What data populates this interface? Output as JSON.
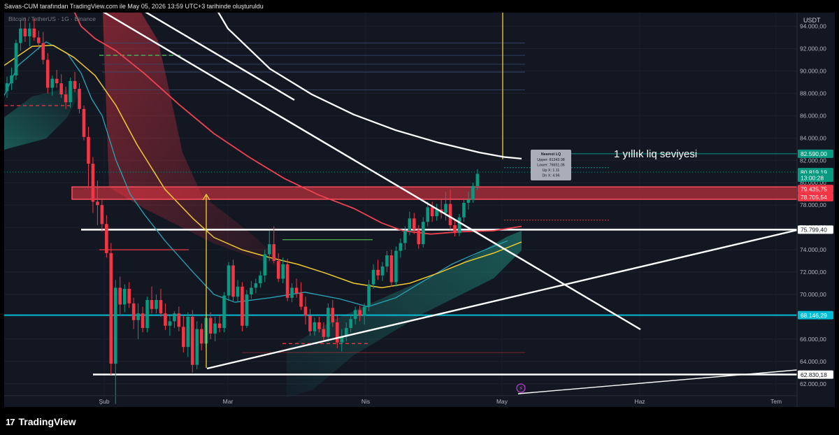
{
  "header": {
    "caption": "Savas-CUM tarafından TradingView.com ile May 05, 2026 13:59 UTC+3 tarihinde oluşturuldu"
  },
  "footer": {
    "logo_mark": "17",
    "brand": "TradingView"
  },
  "chart_data": {
    "type": "candlestick",
    "symbol_label": "Bitcoin / TetherUS · 1G · Binance",
    "currency": "USDT",
    "x_ticks": [
      "Şub",
      "Mar",
      "Nis",
      "May",
      "Haz",
      "Tem"
    ],
    "y_ticks": [
      "62.000,00",
      "64.000,00",
      "66.000,00",
      "68.000,00",
      "70.000,00",
      "72.000,00",
      "74.000,00",
      "76.000,00",
      "78.000,00",
      "80.000,00",
      "82.000,00",
      "84.000,00",
      "86.000,00",
      "88.000,00",
      "90.000,00",
      "92.000,00",
      "94.000,00"
    ],
    "ylim": [
      61000,
      95000
    ],
    "price_labels": [
      {
        "text": "82.590,00",
        "value": 82590,
        "color": "#089981"
      },
      {
        "text": "80.819,19",
        "value": 80950,
        "color": "#089981"
      },
      {
        "text": "13:00:28",
        "value": 80450,
        "color": "#089981"
      },
      {
        "text": "79.435,75",
        "value": 79436,
        "color": "#f23645"
      },
      {
        "text": "78.705,54",
        "value": 78706,
        "color": "#f23645"
      },
      {
        "text": "75.799,40",
        "value": 75799,
        "color": "#ffffff"
      },
      {
        "text": "68.146,29",
        "value": 68146,
        "color": "#00bcd4"
      },
      {
        "text": "62.830,18",
        "value": 62830,
        "color": "#ffffff"
      }
    ],
    "annotation": "1 yıllık liq seviyesi",
    "tooltip": {
      "title": "Nearest LQ",
      "lines": [
        "Upper: 81343.98",
        "Lower: 76651.06",
        "Up X: 1.11",
        "Dn X: 4.96"
      ]
    },
    "support_levels": [
      75799.4,
      68146.29,
      62830.18
    ],
    "liquidity_zone": [
      78705.54,
      79435.75
    ],
    "candles": [
      {
        "o": 88200,
        "h": 89500,
        "l": 87600,
        "c": 88900
      },
      {
        "o": 88900,
        "h": 90300,
        "l": 88300,
        "c": 89600
      },
      {
        "o": 89600,
        "h": 92800,
        "l": 89200,
        "c": 92500
      },
      {
        "o": 92500,
        "h": 94600,
        "l": 91800,
        "c": 93800
      },
      {
        "o": 93800,
        "h": 94800,
        "l": 92600,
        "c": 93100
      },
      {
        "o": 93100,
        "h": 94300,
        "l": 92200,
        "c": 93800
      },
      {
        "o": 93800,
        "h": 94700,
        "l": 92700,
        "c": 93000
      },
      {
        "o": 93000,
        "h": 93600,
        "l": 91900,
        "c": 92500
      },
      {
        "o": 92500,
        "h": 93500,
        "l": 90600,
        "c": 91000
      },
      {
        "o": 91000,
        "h": 91600,
        "l": 88000,
        "c": 88500
      },
      {
        "o": 88500,
        "h": 89600,
        "l": 87800,
        "c": 89300
      },
      {
        "o": 89300,
        "h": 90100,
        "l": 88500,
        "c": 88900
      },
      {
        "o": 88900,
        "h": 89700,
        "l": 87600,
        "c": 87900
      },
      {
        "o": 87900,
        "h": 88600,
        "l": 86600,
        "c": 87200
      },
      {
        "o": 87200,
        "h": 89400,
        "l": 86700,
        "c": 89100
      },
      {
        "o": 89100,
        "h": 89900,
        "l": 88100,
        "c": 88400
      },
      {
        "o": 88400,
        "h": 88900,
        "l": 86200,
        "c": 86600
      },
      {
        "o": 86600,
        "h": 86900,
        "l": 83800,
        "c": 84100
      },
      {
        "o": 84100,
        "h": 85000,
        "l": 79500,
        "c": 81700
      },
      {
        "o": 81700,
        "h": 82300,
        "l": 77300,
        "c": 78300
      },
      {
        "o": 78300,
        "h": 80200,
        "l": 76200,
        "c": 78000
      },
      {
        "o": 78000,
        "h": 78600,
        "l": 75600,
        "c": 76300
      },
      {
        "o": 76300,
        "h": 77100,
        "l": 73300,
        "c": 73700
      },
      {
        "o": 73700,
        "h": 74600,
        "l": 62800,
        "c": 63800
      },
      {
        "o": 63800,
        "h": 71300,
        "l": 60200,
        "c": 70600
      },
      {
        "o": 70600,
        "h": 71600,
        "l": 68100,
        "c": 69100
      },
      {
        "o": 69100,
        "h": 70900,
        "l": 68400,
        "c": 70500
      },
      {
        "o": 70500,
        "h": 71100,
        "l": 68800,
        "c": 69200
      },
      {
        "o": 69200,
        "h": 69700,
        "l": 66900,
        "c": 67700
      },
      {
        "o": 67700,
        "h": 69200,
        "l": 66000,
        "c": 68300
      },
      {
        "o": 68300,
        "h": 68900,
        "l": 66600,
        "c": 67000
      },
      {
        "o": 67000,
        "h": 69800,
        "l": 66600,
        "c": 69500
      },
      {
        "o": 69500,
        "h": 70700,
        "l": 68300,
        "c": 68700
      },
      {
        "o": 68700,
        "h": 70000,
        "l": 68300,
        "c": 69500
      },
      {
        "o": 69500,
        "h": 70500,
        "l": 68000,
        "c": 68300
      },
      {
        "o": 68300,
        "h": 69200,
        "l": 66800,
        "c": 67200
      },
      {
        "o": 67200,
        "h": 68100,
        "l": 66300,
        "c": 67600
      },
      {
        "o": 67600,
        "h": 68500,
        "l": 67000,
        "c": 68300
      },
      {
        "o": 68300,
        "h": 68900,
        "l": 66700,
        "c": 67100
      },
      {
        "o": 67100,
        "h": 68100,
        "l": 64800,
        "c": 65300
      },
      {
        "o": 65300,
        "h": 68400,
        "l": 64400,
        "c": 68000
      },
      {
        "o": 68000,
        "h": 68600,
        "l": 63000,
        "c": 63700
      },
      {
        "o": 63700,
        "h": 67600,
        "l": 63300,
        "c": 66900
      },
      {
        "o": 66900,
        "h": 67400,
        "l": 65000,
        "c": 65600
      },
      {
        "o": 65600,
        "h": 68400,
        "l": 65200,
        "c": 67900
      },
      {
        "o": 67900,
        "h": 68400,
        "l": 66000,
        "c": 66500
      },
      {
        "o": 66500,
        "h": 68000,
        "l": 65800,
        "c": 67400
      },
      {
        "o": 67400,
        "h": 68100,
        "l": 66600,
        "c": 67000
      },
      {
        "o": 67000,
        "h": 70200,
        "l": 66600,
        "c": 69900
      },
      {
        "o": 69900,
        "h": 72900,
        "l": 69400,
        "c": 72600
      },
      {
        "o": 72600,
        "h": 73100,
        "l": 69300,
        "c": 69800
      },
      {
        "o": 69800,
        "h": 71300,
        "l": 69300,
        "c": 70700
      },
      {
        "o": 70700,
        "h": 71100,
        "l": 66700,
        "c": 67200
      },
      {
        "o": 67200,
        "h": 70400,
        "l": 67000,
        "c": 70000
      },
      {
        "o": 70000,
        "h": 71200,
        "l": 69600,
        "c": 70600
      },
      {
        "o": 70600,
        "h": 71400,
        "l": 70100,
        "c": 71000
      },
      {
        "o": 71000,
        "h": 72100,
        "l": 70600,
        "c": 71700
      },
      {
        "o": 71700,
        "h": 74000,
        "l": 71100,
        "c": 73600
      },
      {
        "o": 73600,
        "h": 75700,
        "l": 73000,
        "c": 74500
      },
      {
        "o": 74500,
        "h": 76100,
        "l": 72800,
        "c": 73000
      },
      {
        "o": 73000,
        "h": 73700,
        "l": 71100,
        "c": 71400
      },
      {
        "o": 71400,
        "h": 73300,
        "l": 71000,
        "c": 72700
      },
      {
        "o": 72700,
        "h": 73200,
        "l": 69400,
        "c": 69700
      },
      {
        "o": 69700,
        "h": 71000,
        "l": 69300,
        "c": 70600
      },
      {
        "o": 70600,
        "h": 71400,
        "l": 69700,
        "c": 70100
      },
      {
        "o": 70100,
        "h": 71100,
        "l": 68600,
        "c": 68900
      },
      {
        "o": 68900,
        "h": 69800,
        "l": 67300,
        "c": 68100
      },
      {
        "o": 68100,
        "h": 68700,
        "l": 66300,
        "c": 66700
      },
      {
        "o": 66700,
        "h": 67900,
        "l": 66300,
        "c": 67500
      },
      {
        "o": 67500,
        "h": 68000,
        "l": 66600,
        "c": 66900
      },
      {
        "o": 66900,
        "h": 67500,
        "l": 65800,
        "c": 66200
      },
      {
        "o": 66200,
        "h": 69200,
        "l": 65800,
        "c": 68800
      },
      {
        "o": 68800,
        "h": 69500,
        "l": 67100,
        "c": 67500
      },
      {
        "o": 67500,
        "h": 68100,
        "l": 65200,
        "c": 65700
      },
      {
        "o": 65700,
        "h": 66900,
        "l": 64900,
        "c": 66200
      },
      {
        "o": 66200,
        "h": 67500,
        "l": 65800,
        "c": 67000
      },
      {
        "o": 67000,
        "h": 68200,
        "l": 66600,
        "c": 67800
      },
      {
        "o": 67800,
        "h": 68900,
        "l": 67300,
        "c": 68600
      },
      {
        "o": 68600,
        "h": 69000,
        "l": 67600,
        "c": 68100
      },
      {
        "o": 68100,
        "h": 69200,
        "l": 67300,
        "c": 68900
      },
      {
        "o": 68900,
        "h": 71300,
        "l": 68500,
        "c": 70900
      },
      {
        "o": 70900,
        "h": 72700,
        "l": 70500,
        "c": 72200
      },
      {
        "o": 72200,
        "h": 73100,
        "l": 71300,
        "c": 71700
      },
      {
        "o": 71700,
        "h": 72900,
        "l": 71200,
        "c": 72500
      },
      {
        "o": 72500,
        "h": 73900,
        "l": 72000,
        "c": 73500
      },
      {
        "o": 73500,
        "h": 74000,
        "l": 70700,
        "c": 71100
      },
      {
        "o": 71100,
        "h": 74300,
        "l": 70700,
        "c": 73900
      },
      {
        "o": 73900,
        "h": 75000,
        "l": 73300,
        "c": 74600
      },
      {
        "o": 74600,
        "h": 76100,
        "l": 74000,
        "c": 75700
      },
      {
        "o": 75700,
        "h": 77400,
        "l": 75300,
        "c": 76800
      },
      {
        "o": 76800,
        "h": 77300,
        "l": 75400,
        "c": 75800
      },
      {
        "o": 75800,
        "h": 76200,
        "l": 74100,
        "c": 74500
      },
      {
        "o": 74500,
        "h": 76900,
        "l": 74200,
        "c": 76500
      },
      {
        "o": 76500,
        "h": 78300,
        "l": 76100,
        "c": 77800
      },
      {
        "o": 77800,
        "h": 78300,
        "l": 76500,
        "c": 77000
      },
      {
        "o": 77000,
        "h": 78100,
        "l": 76600,
        "c": 77600
      },
      {
        "o": 77600,
        "h": 78500,
        "l": 76800,
        "c": 77300
      },
      {
        "o": 77300,
        "h": 79200,
        "l": 76600,
        "c": 78100
      },
      {
        "o": 78100,
        "h": 79400,
        "l": 75800,
        "c": 76200
      },
      {
        "o": 76200,
        "h": 76800,
        "l": 75200,
        "c": 75500
      },
      {
        "o": 75500,
        "h": 77200,
        "l": 75200,
        "c": 76900
      },
      {
        "o": 76900,
        "h": 78600,
        "l": 76500,
        "c": 78200
      },
      {
        "o": 78200,
        "h": 79200,
        "l": 77600,
        "c": 78500
      },
      {
        "o": 78500,
        "h": 80000,
        "l": 78200,
        "c": 79700
      },
      {
        "o": 79700,
        "h": 81200,
        "l": 79300,
        "c": 80800
      }
    ]
  }
}
